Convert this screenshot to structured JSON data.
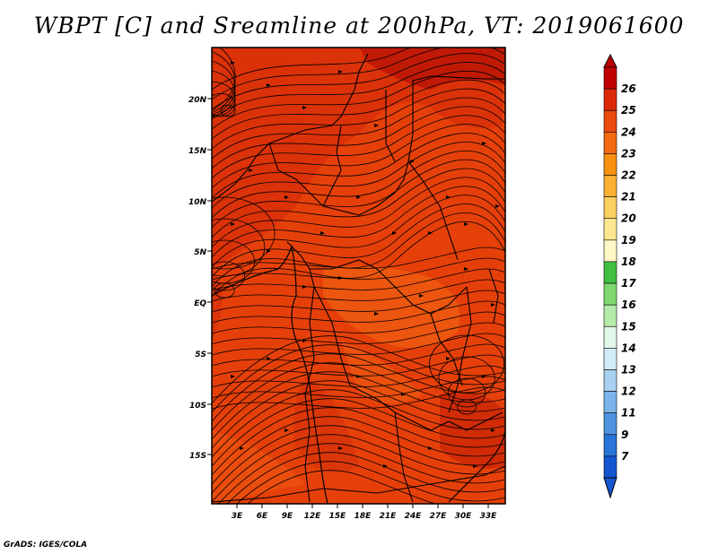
{
  "title": "WBPT [C] and Sreamline at 200hPa, VT: 2019061600",
  "credit": "GrADS: IGES/COLA",
  "map": {
    "lat_labels": [
      "20N",
      "15N",
      "10N",
      "5N",
      "EQ",
      "5S",
      "10S",
      "15S"
    ],
    "lon_labels": [
      "3E",
      "6E",
      "9E",
      "12E",
      "15E",
      "18E",
      "21E",
      "24E",
      "27E",
      "30E",
      "33E"
    ],
    "dominant_fill": "#e6400a"
  },
  "colorbar": {
    "labels": [
      "26",
      "25",
      "24",
      "23",
      "22",
      "21",
      "20",
      "19",
      "18",
      "17",
      "16",
      "15",
      "14",
      "13",
      "12",
      "11",
      "9",
      "7"
    ],
    "colors": [
      "#c00000",
      "#dc2a08",
      "#ea4a0e",
      "#f06a10",
      "#f89010",
      "#fab030",
      "#fcd060",
      "#fde890",
      "#fff7c4",
      "#40c040",
      "#80d870",
      "#b4eca8",
      "#e2f8ea",
      "#d2ecf8",
      "#a8d0f0",
      "#7ab4ea",
      "#4e92e0",
      "#2874d8",
      "#1456d0"
    ]
  }
}
